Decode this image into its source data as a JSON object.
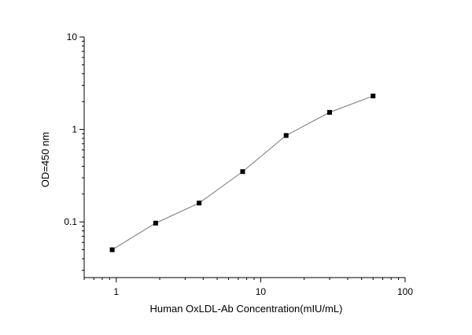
{
  "chart_data": {
    "type": "line",
    "xlabel": "Human OxLDL-Ab Concentration(mIU/mL)",
    "ylabel": "OD=450 nm",
    "x_scale": "log",
    "y_scale": "log",
    "xlim": [
      0.6,
      100
    ],
    "ylim": [
      0.025,
      10
    ],
    "x_ticks": [
      {
        "value": 1,
        "label": "1"
      },
      {
        "value": 10,
        "label": "10"
      },
      {
        "value": 100,
        "label": "100"
      }
    ],
    "y_ticks": [
      {
        "value": 0.1,
        "label": "0.1"
      },
      {
        "value": 1,
        "label": "1"
      },
      {
        "value": 10,
        "label": "10"
      }
    ],
    "grid": false,
    "legend": "none",
    "series": [
      {
        "x": [
          0.9375,
          1.875,
          3.75,
          7.5,
          15,
          30,
          60
        ],
        "y": [
          0.05,
          0.097,
          0.16,
          0.35,
          0.86,
          1.53,
          2.3
        ]
      }
    ],
    "colors": {
      "line": "#777777",
      "marker": "#000000",
      "axis": "#000000"
    }
  }
}
